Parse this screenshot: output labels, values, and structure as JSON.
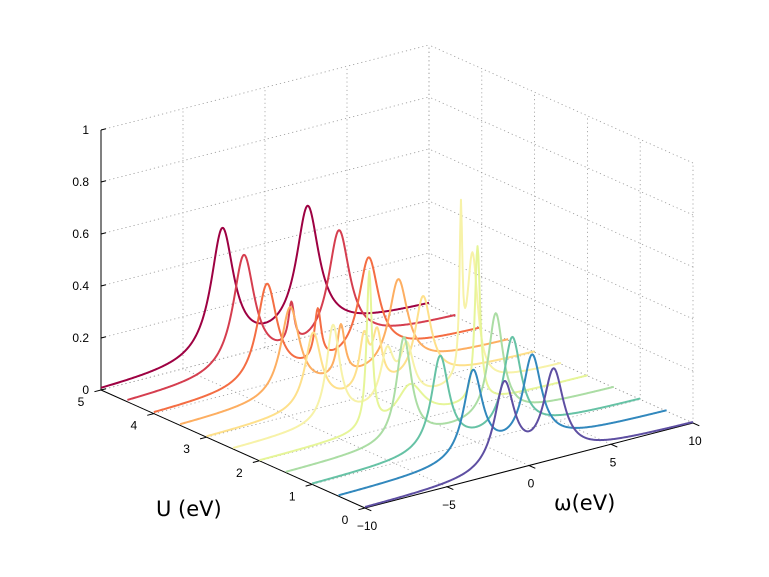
{
  "chart_data": {
    "type": "line",
    "projection": "3d-waterfall",
    "title": "",
    "xlabel": "ω(eV)",
    "ylabel": "U (eV)",
    "zlabel": "",
    "xlim": [
      -10,
      10
    ],
    "ylim": [
      0,
      5
    ],
    "zlim": [
      0,
      1
    ],
    "xticks": [
      "−10",
      "−5",
      "0",
      "5",
      "10"
    ],
    "yticks": [
      "0",
      "1",
      "2",
      "3",
      "4",
      "5"
    ],
    "zticks": [
      "0",
      "0.2",
      "0.4",
      "0.6",
      "0.8",
      "1"
    ],
    "grid": true,
    "legend": "none",
    "series": [
      {
        "u": 0.0,
        "color": "#5e4fa2",
        "peaks": [
          {
            "x": -1.5,
            "z": 0.33,
            "w": 0.75
          },
          {
            "x": 1.5,
            "z": 0.33,
            "w": 0.75
          }
        ]
      },
      {
        "u": 0.5,
        "color": "#3288bd",
        "peaks": [
          {
            "x": -1.8,
            "z": 0.34,
            "w": 0.7
          },
          {
            "x": 1.8,
            "z": 0.34,
            "w": 0.7
          }
        ]
      },
      {
        "u": 1.0,
        "color": "#66c2a5",
        "peaks": [
          {
            "x": -2.2,
            "z": 0.36,
            "w": 0.65
          },
          {
            "x": 2.2,
            "z": 0.36,
            "w": 0.65
          }
        ]
      },
      {
        "u": 1.5,
        "color": "#abdda4",
        "peaks": [
          {
            "x": -2.8,
            "z": 0.4,
            "w": 0.55
          },
          {
            "x": 2.8,
            "z": 0.4,
            "w": 0.55
          }
        ]
      },
      {
        "u": 2.0,
        "color": "#e6f598",
        "peaks": [
          {
            "x": -3.3,
            "z": 0.6,
            "w": 0.2
          },
          {
            "x": -0.8,
            "z": 0.14,
            "w": 1.0
          },
          {
            "x": 3.3,
            "z": 0.6,
            "w": 0.2
          }
        ]
      },
      {
        "u": 2.5,
        "color": "#f7f2a8",
        "peaks": [
          {
            "x": -3.9,
            "z": 0.37,
            "w": 0.5
          },
          {
            "x": -0.6,
            "z": 0.2,
            "w": 0.5
          },
          {
            "x": 0.6,
            "z": 0.2,
            "w": 0.5
          },
          {
            "x": 3.9,
            "z": 0.6,
            "w": 0.1
          },
          {
            "x": 4.6,
            "z": 0.5,
            "w": 0.4
          }
        ]
      },
      {
        "u": 3.0,
        "color": "#fee08b",
        "peaks": [
          {
            "x": -3.5,
            "z": 0.29,
            "w": 0.6
          },
          {
            "x": -0.4,
            "z": 0.2,
            "w": 0.35
          },
          {
            "x": 0.4,
            "z": 0.2,
            "w": 0.35
          },
          {
            "x": 3.2,
            "z": 0.32,
            "w": 0.6
          }
        ]
      },
      {
        "u": 3.5,
        "color": "#fdae61",
        "peaks": [
          {
            "x": -3.3,
            "z": 0.34,
            "w": 0.7
          },
          {
            "x": -0.2,
            "z": 0.2,
            "w": 0.3
          },
          {
            "x": 3.3,
            "z": 0.34,
            "w": 0.7
          }
        ]
      },
      {
        "u": 4.0,
        "color": "#f46d43",
        "peaks": [
          {
            "x": -3.1,
            "z": 0.38,
            "w": 0.75
          },
          {
            "x": 0.0,
            "z": 0.2,
            "w": 0.25
          },
          {
            "x": 3.1,
            "z": 0.38,
            "w": 0.75
          }
        ]
      },
      {
        "u": 4.5,
        "color": "#d53e4f",
        "peaks": [
          {
            "x": -2.9,
            "z": 0.44,
            "w": 0.8
          },
          {
            "x": 0.0,
            "z": 0.16,
            "w": 0.22
          },
          {
            "x": 2.9,
            "z": 0.44,
            "w": 0.8
          }
        ]
      },
      {
        "u": 5.0,
        "color": "#9e0142",
        "peaks": [
          {
            "x": -2.6,
            "z": 0.49,
            "w": 0.85
          },
          {
            "x": 2.6,
            "z": 0.49,
            "w": 0.85
          }
        ]
      }
    ]
  }
}
